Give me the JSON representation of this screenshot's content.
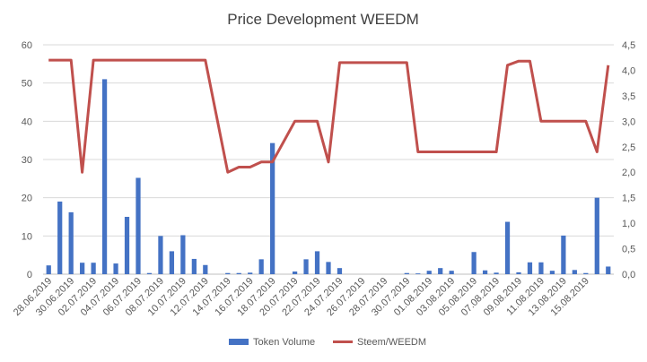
{
  "chart_data": {
    "type": "bar+line",
    "title": "Price Development WEEDM",
    "x_labels": [
      "28.06.2019",
      "30.06.2019",
      "02.07.2019",
      "04.07.2019",
      "06.07.2019",
      "08.07.2019",
      "10.07.2019",
      "12.07.2019",
      "14.07.2019",
      "16.07.2019",
      "18.07.2019",
      "20.07.2019",
      "22.07.2019",
      "24.07.2019",
      "26.07.2019",
      "28.07.2019",
      "30.07.2019",
      "01.08.2019",
      "03.08.2019",
      "05.08.2019",
      "07.08.2019",
      "09.08.2019",
      "11.08.2019",
      "13.08.2019",
      "15.08.2019"
    ],
    "left_axis": {
      "min": 0,
      "max": 60,
      "ticks": [
        "0",
        "10",
        "20",
        "30",
        "40",
        "50",
        "60"
      ]
    },
    "right_axis": {
      "min": 0,
      "max": 4.5,
      "ticks": [
        "0,0",
        "0,5",
        "1,0",
        "1,5",
        "2,0",
        "2,5",
        "3,0",
        "3,5",
        "4,0",
        "4,5"
      ]
    },
    "series": [
      {
        "name": "Token Volume",
        "type": "bar",
        "axis": "left",
        "color": "#4472c4",
        "values": [
          2.3,
          19.0,
          16.2,
          3.0,
          3.0,
          51.0,
          2.8,
          15.0,
          25.2,
          0.3,
          10.0,
          6.0,
          10.2,
          4.0,
          2.4,
          0,
          0.3,
          0.3,
          0.4,
          3.9,
          34.3,
          0,
          0.7,
          3.9,
          6.0,
          3.2,
          1.6,
          0,
          0,
          0,
          0,
          0,
          0.3,
          0.2,
          0.9,
          1.6,
          0.9,
          0,
          5.8,
          1.0,
          0.4,
          13.7,
          0.5,
          3.1,
          3.1,
          0.9,
          10.1,
          1.1,
          0.3,
          20.0,
          2.0
        ]
      },
      {
        "name": "Steem/WEEDM",
        "type": "line",
        "axis": "right",
        "color": "#c0504d",
        "values": [
          4.2,
          4.2,
          4.2,
          2.0,
          4.2,
          4.2,
          4.2,
          4.2,
          4.2,
          4.2,
          4.2,
          4.2,
          4.2,
          4.2,
          4.2,
          3.1,
          2.0,
          2.1,
          2.1,
          2.2,
          2.2,
          2.6,
          3.0,
          3.0,
          3.0,
          2.2,
          4.15,
          4.15,
          4.15,
          4.15,
          4.15,
          4.15,
          4.15,
          2.4,
          2.4,
          2.4,
          2.4,
          2.4,
          2.4,
          2.4,
          2.4,
          4.1,
          4.18,
          4.18,
          3.0,
          3.0,
          3.0,
          3.0,
          3.0,
          2.4,
          4.1
        ]
      }
    ],
    "legend": {
      "position": "bottom",
      "entries": [
        "Token Volume",
        "Steem/WEEDM"
      ]
    }
  }
}
